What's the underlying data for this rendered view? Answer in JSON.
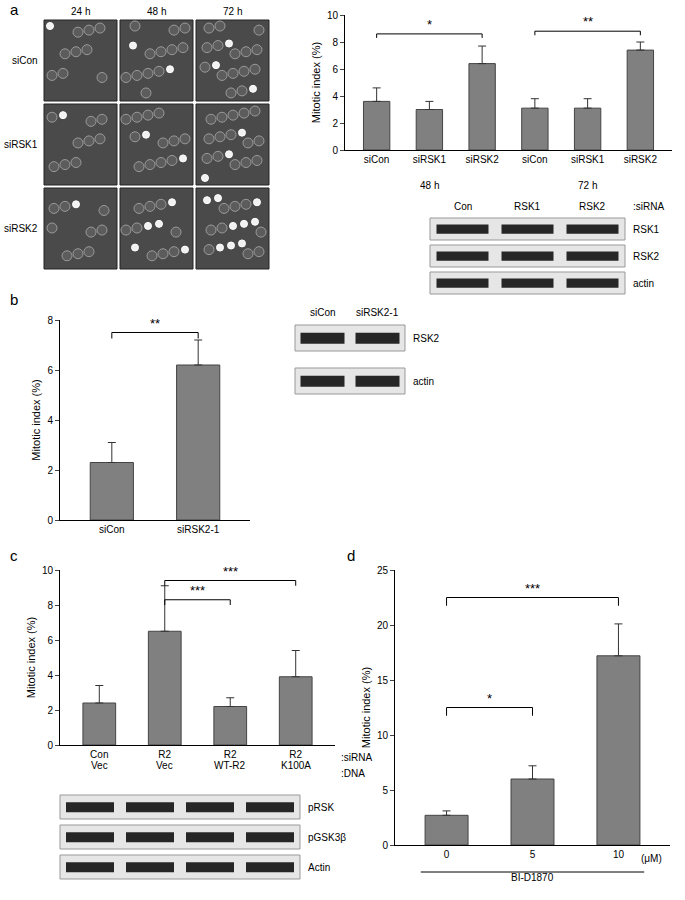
{
  "chart_data": [
    {
      "panel": "a",
      "type": "bar",
      "y_label": "Mitotic index (%)",
      "categories": [
        "siCon",
        "siRSK1",
        "siRSK2",
        "siCon",
        "siRSK1",
        "siRSK2"
      ],
      "group_labels": [
        "48 h",
        "72 h"
      ],
      "values": [
        3.6,
        3.0,
        6.4,
        3.1,
        3.1,
        7.4
      ],
      "errors": [
        1.0,
        0.6,
        1.3,
        0.7,
        0.7,
        0.6
      ],
      "color": "#808080",
      "ylim": [
        0,
        10
      ],
      "yticks": [
        0,
        2,
        4,
        6,
        8,
        10
      ],
      "grid": false,
      "significance": [
        {
          "from": 0,
          "to": 2,
          "y": 8.6,
          "label": "*"
        },
        {
          "from": 3,
          "to": 5,
          "y": 8.8,
          "label": "**"
        }
      ]
    },
    {
      "panel": "b",
      "type": "bar",
      "y_label": "Mitotic index (%)",
      "categories": [
        "siCon",
        "siRSK2-1"
      ],
      "values": [
        2.3,
        6.2
      ],
      "errors": [
        0.8,
        1.0
      ],
      "color": "#808080",
      "ylim": [
        0,
        8
      ],
      "yticks": [
        0,
        2,
        4,
        6,
        8
      ],
      "grid": false,
      "significance": [
        {
          "from": 0,
          "to": 1,
          "y": 7.5,
          "label": "**"
        }
      ]
    },
    {
      "panel": "c",
      "type": "bar",
      "y_label": "Mitotic index (%)",
      "categories": [
        "Con",
        "R2",
        "R2",
        "R2"
      ],
      "categories_suffix": ":siRNA",
      "second_row": {
        "labels": [
          "Vec",
          "Vec",
          "WT-R2",
          "K100A"
        ],
        "suffix": ":DNA"
      },
      "values": [
        2.4,
        6.5,
        2.2,
        3.9
      ],
      "errors": [
        1.0,
        2.6,
        0.5,
        1.5
      ],
      "color": "#808080",
      "ylim": [
        0,
        10
      ],
      "yticks": [
        0,
        2,
        4,
        6,
        8,
        10
      ],
      "grid": false,
      "significance": [
        {
          "from": 1,
          "to": 2,
          "y": 8.3,
          "label": "***"
        },
        {
          "from": 1,
          "to": 3,
          "y": 9.4,
          "label": "***"
        }
      ]
    },
    {
      "panel": "d",
      "type": "bar",
      "y_label": "Mitotic index (%)",
      "categories": [
        "0",
        "5",
        "10"
      ],
      "x_unit": "(μM)",
      "x_group_label": "BI-D1870",
      "values": [
        2.7,
        6.0,
        17.2
      ],
      "errors": [
        0.4,
        1.2,
        2.9
      ],
      "color": "#808080",
      "ylim": [
        0,
        25
      ],
      "yticks": [
        0,
        5,
        10,
        15,
        20,
        25
      ],
      "grid": false,
      "significance": [
        {
          "from": 0,
          "to": 1,
          "y": 12.5,
          "label": "*"
        },
        {
          "from": 0,
          "to": 2,
          "y": 22.5,
          "label": "***"
        }
      ]
    }
  ],
  "images": {
    "columns": [
      "24 h",
      "48 h",
      "72 h"
    ],
    "rows": [
      "siCon",
      "siRSK1",
      "siRSK2"
    ]
  },
  "blots": [
    {
      "panel": "a",
      "lanes": [
        "Con",
        "RSK1",
        "RSK2"
      ],
      "lanes_label": ":siRNA",
      "rows": [
        "RSK1",
        "RSK2",
        "actin"
      ]
    },
    {
      "panel": "b",
      "lanes": [
        "siCon",
        "siRSK2-1"
      ],
      "rows": [
        "RSK2",
        "actin"
      ]
    },
    {
      "panel": "c",
      "rows": [
        "pRSK",
        "pGSK3β",
        "Actin"
      ]
    }
  ]
}
